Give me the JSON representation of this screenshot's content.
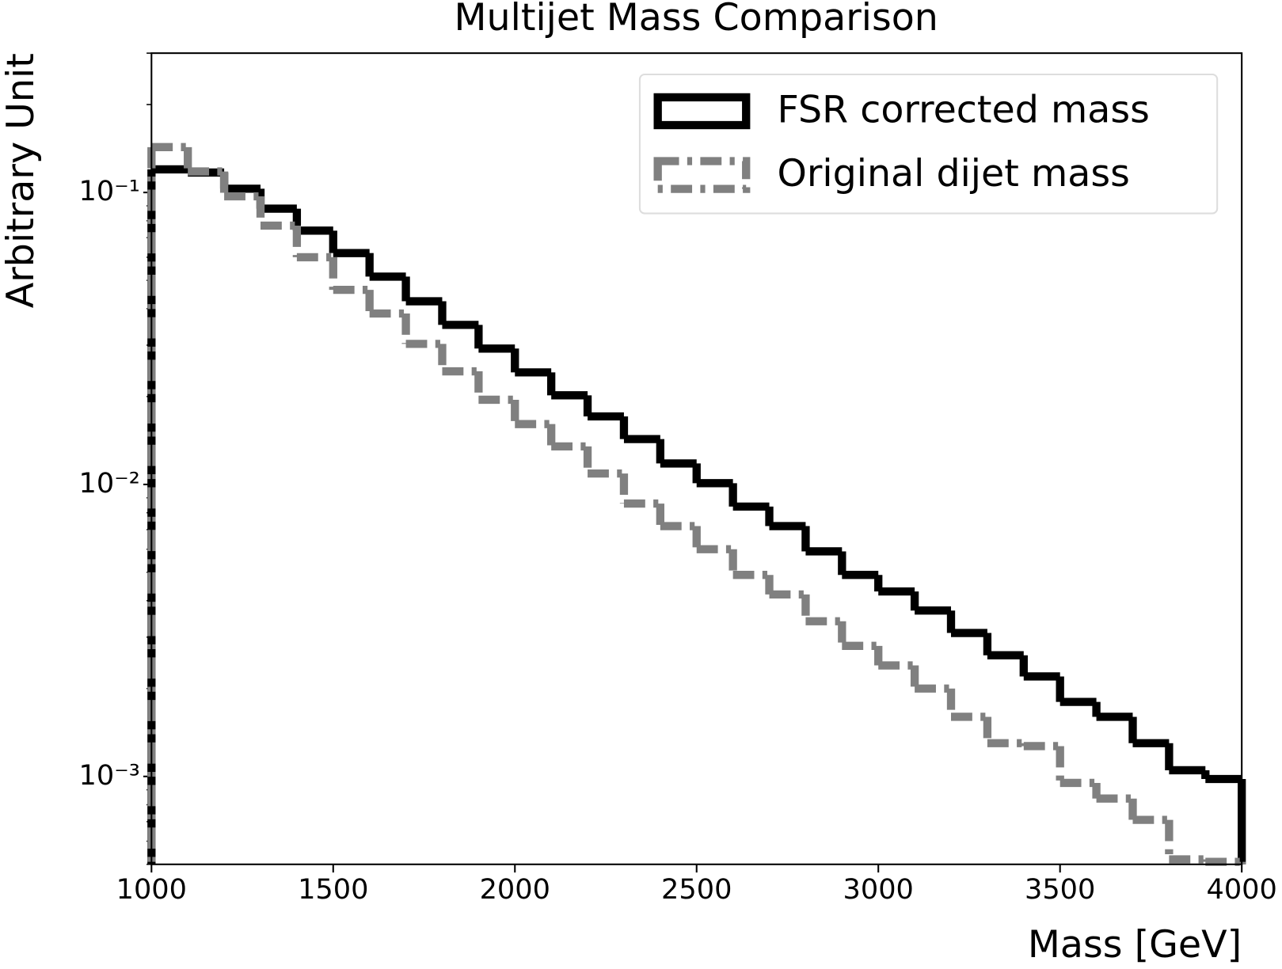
{
  "chart_data": {
    "type": "histogram",
    "title": "Multijet Mass Comparison",
    "x_label": "Mass [GeV]",
    "y_label": "Arbitrary Unit",
    "bins": [
      1000,
      1100,
      1200,
      1300,
      1400,
      1500,
      1600,
      1700,
      1800,
      1900,
      2000,
      2100,
      2200,
      2300,
      2400,
      2500,
      2600,
      2700,
      2800,
      2900,
      3000,
      3100,
      3200,
      3300,
      3400,
      3500,
      3600,
      3700,
      3800,
      3900,
      4000
    ],
    "series": [
      {
        "name": "FSR corrected mass",
        "color": "#000000",
        "linestyle": "solid",
        "values": [
          0.12,
          0.117,
          0.103,
          0.088,
          0.074,
          0.062,
          0.0515,
          0.0424,
          0.0352,
          0.0292,
          0.0242,
          0.0202,
          0.0171,
          0.0143,
          0.0118,
          0.0101,
          0.0084,
          0.0072,
          0.0059,
          0.0049,
          0.0043,
          0.0037,
          0.0031,
          0.0026,
          0.0022,
          0.0018,
          0.0016,
          0.0013,
          0.00105,
          0.00098
        ]
      },
      {
        "name": "Original dijet mass",
        "color": "#808080",
        "linestyle": "dashdot",
        "values": [
          0.143,
          0.118,
          0.097,
          0.077,
          0.06,
          0.0464,
          0.0385,
          0.0303,
          0.0244,
          0.0195,
          0.0161,
          0.0135,
          0.0109,
          0.0086,
          0.0072,
          0.006,
          0.0049,
          0.0042,
          0.0034,
          0.0028,
          0.0024,
          0.002,
          0.0016,
          0.0013,
          0.00127,
          0.00095,
          0.00084,
          0.00071,
          0.00052,
          0.00051
        ]
      }
    ],
    "xlim": [
      1000,
      4000
    ],
    "xticks": [
      1000,
      1500,
      2000,
      2500,
      3000,
      3500,
      4000
    ],
    "ylim": [
      0.0005,
      0.3
    ],
    "y_log": true,
    "yticks": [
      {
        "value": 0.1,
        "label": "10⁻¹"
      },
      {
        "value": 0.01,
        "label": "10⁻²"
      },
      {
        "value": 0.001,
        "label": "10⁻³"
      }
    ],
    "yminorticks": [
      0.0005,
      0.0006,
      0.0007,
      0.0008,
      0.0009,
      0.002,
      0.003,
      0.004,
      0.005,
      0.006,
      0.007,
      0.008,
      0.009,
      0.02,
      0.03,
      0.04,
      0.05,
      0.06,
      0.07,
      0.08,
      0.09,
      0.2,
      0.3
    ],
    "grid": false,
    "legend": "upper right"
  }
}
